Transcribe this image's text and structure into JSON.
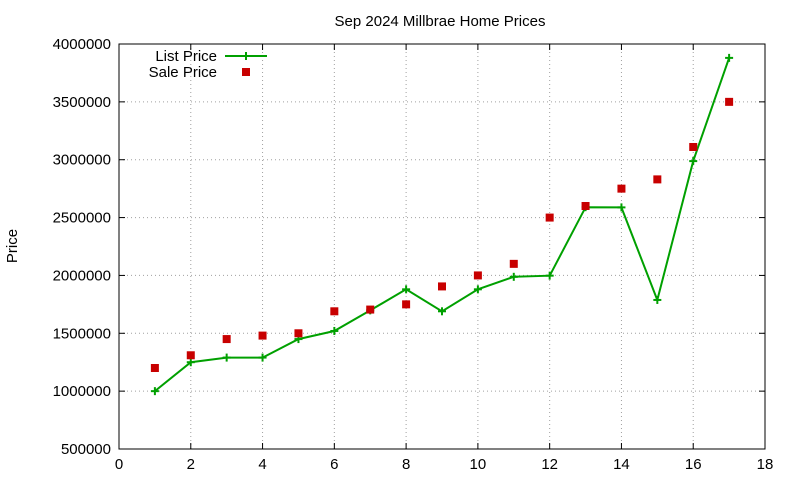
{
  "chart_data": {
    "type": "line",
    "title": "Sep 2024 Millbrae Home Prices",
    "xlabel": "",
    "ylabel": "Price",
    "xlim": [
      0,
      18
    ],
    "ylim": [
      500000,
      4000000
    ],
    "xticks": [
      "0",
      "2",
      "4",
      "6",
      "8",
      "10",
      "12",
      "14",
      "16",
      "18"
    ],
    "yticks": [
      "500000",
      "1000000",
      "1500000",
      "2000000",
      "2500000",
      "3000000",
      "3500000",
      "4000000"
    ],
    "grid": true,
    "legend_position": "top-left",
    "x": [
      1,
      2,
      3,
      4,
      5,
      6,
      7,
      8,
      9,
      10,
      11,
      12,
      13,
      14,
      15,
      16,
      17
    ],
    "series": [
      {
        "name": "List Price",
        "style": "line+cross",
        "color": "#00a000",
        "values": [
          1000000,
          1250000,
          1290000,
          1290000,
          1450000,
          1520000,
          1698000,
          1880000,
          1690000,
          1880000,
          1988000,
          1998000,
          2590000,
          2588000,
          1788000,
          2988000,
          3880000
        ]
      },
      {
        "name": "Sale Price",
        "style": "square",
        "color": "#c80000",
        "values": [
          1200000,
          1310000,
          1450000,
          1480000,
          1500000,
          1690000,
          1705000,
          1750000,
          1905000,
          2000000,
          2100000,
          2500000,
          2600000,
          2750000,
          2830000,
          3110000,
          3500000
        ]
      }
    ]
  }
}
